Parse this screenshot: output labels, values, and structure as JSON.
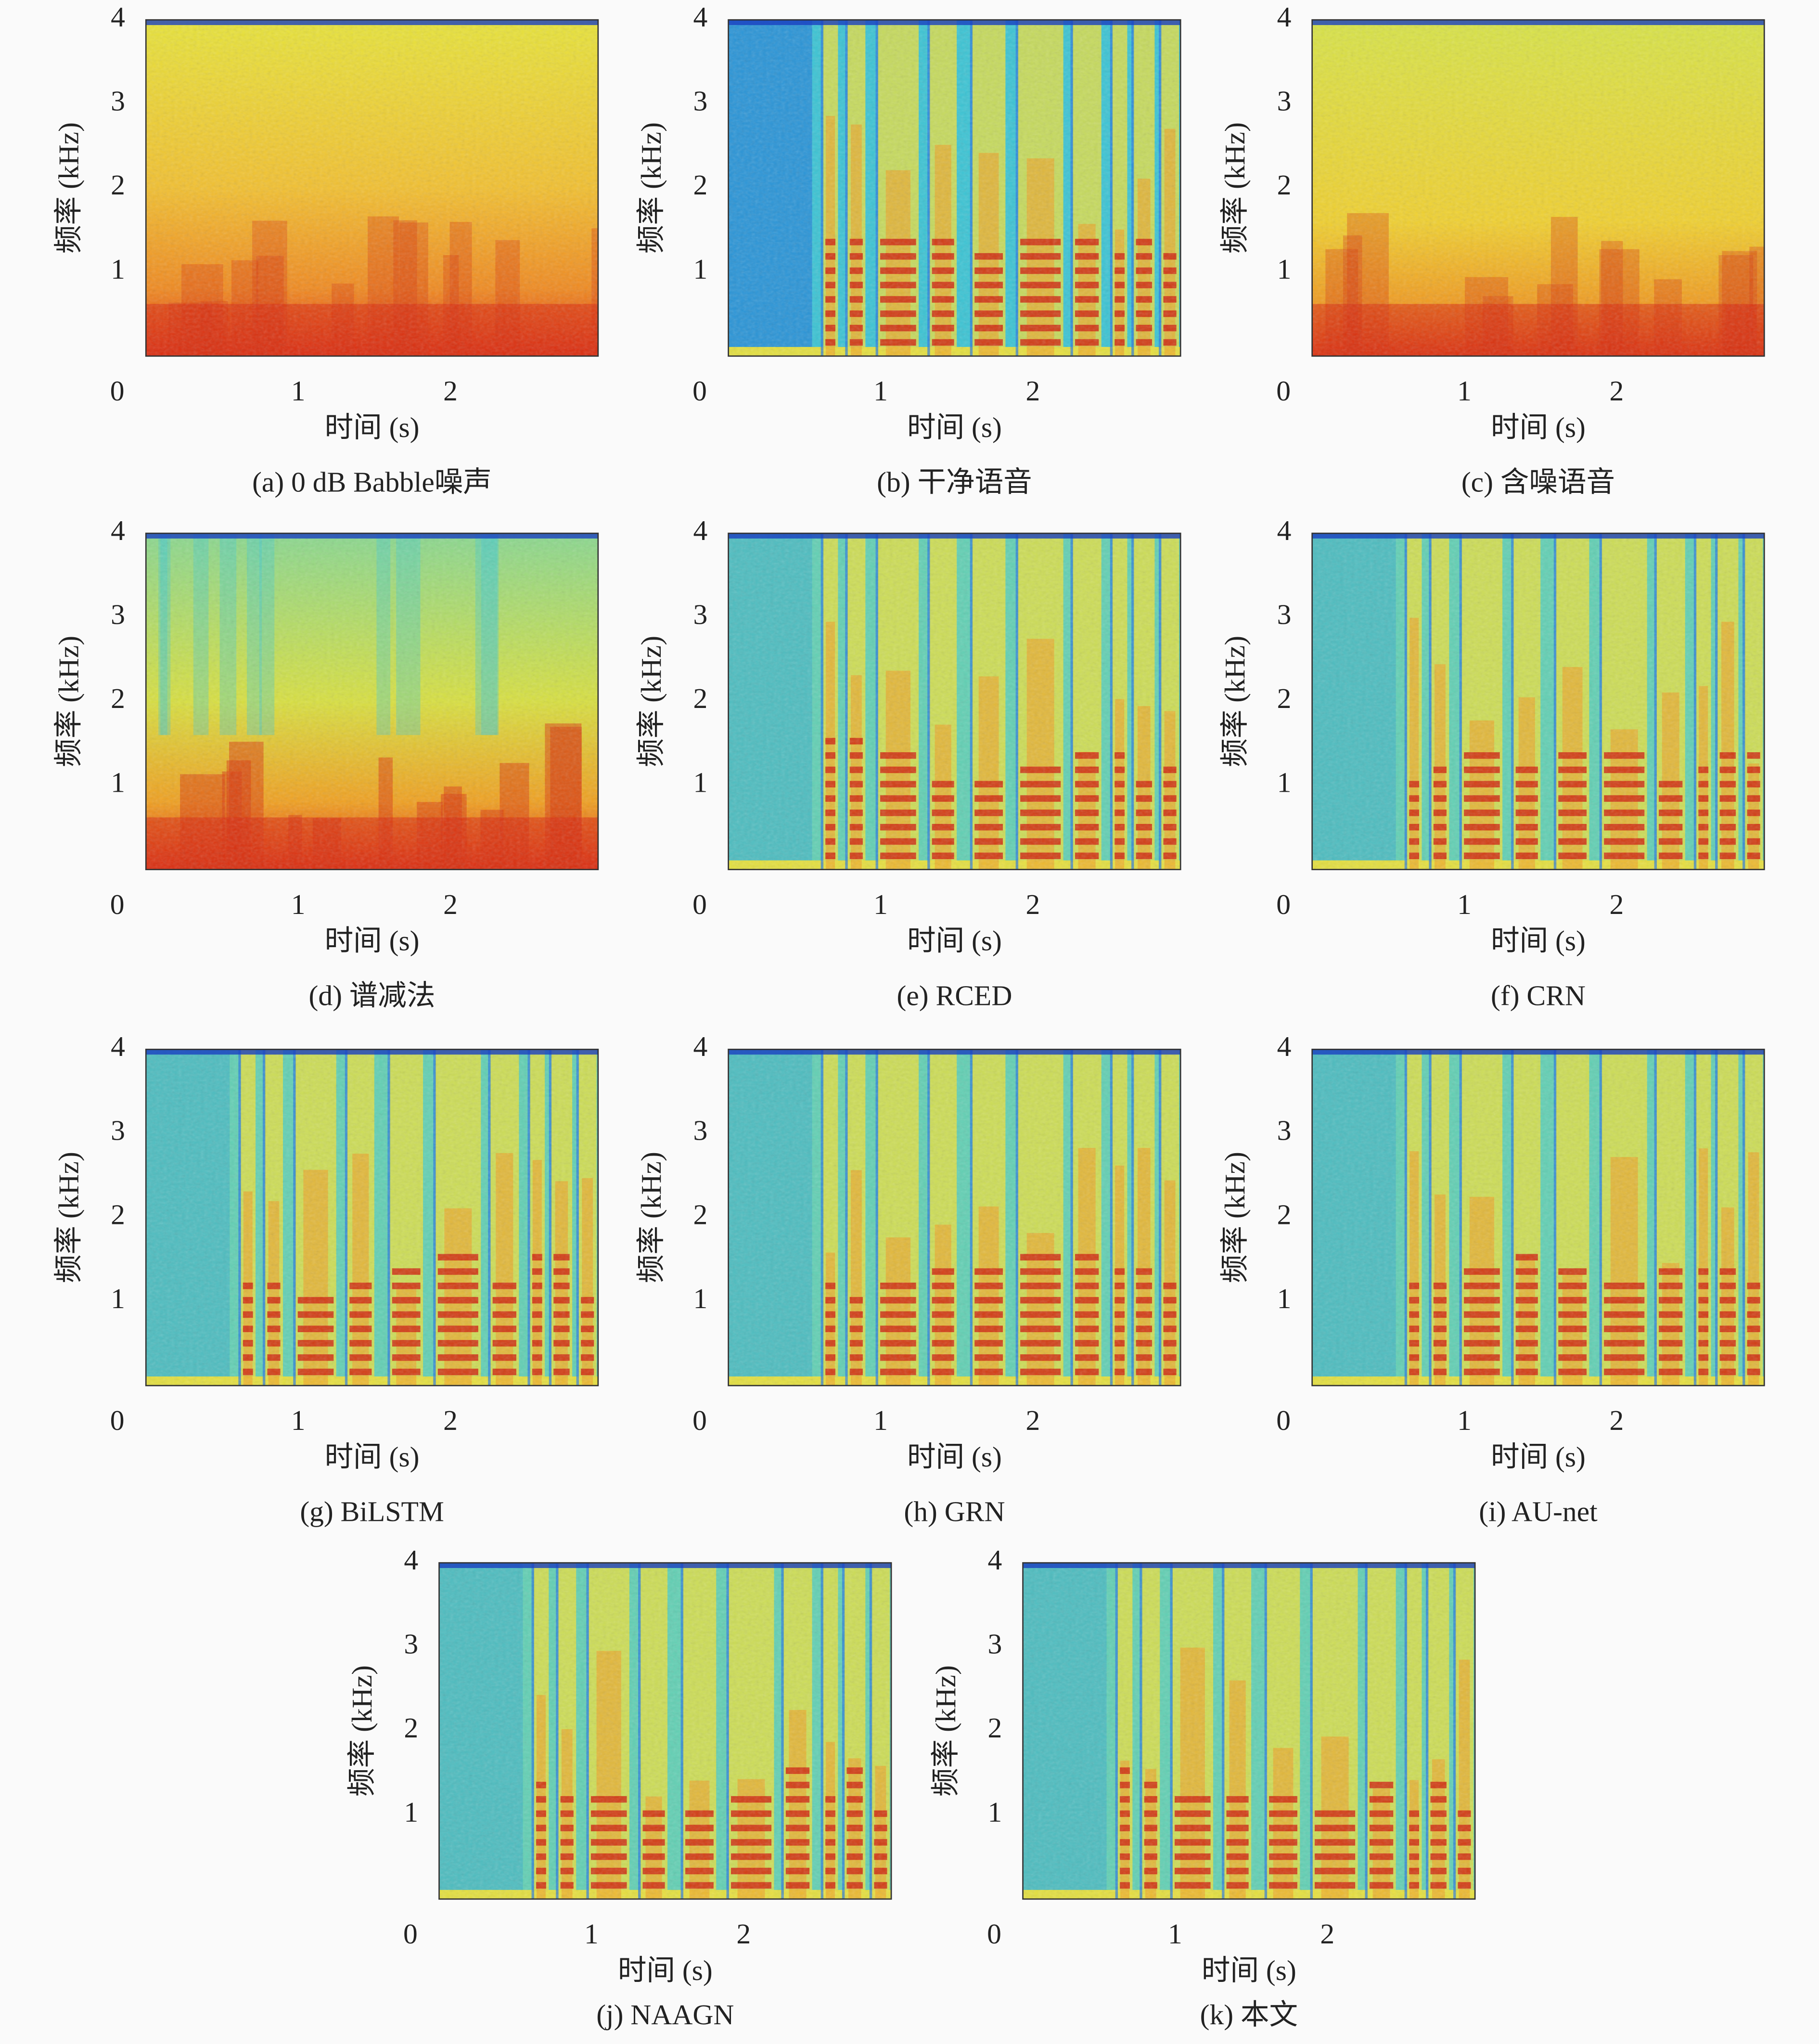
{
  "chart_data": [
    {
      "type": "spectrogram",
      "caption": "(a) 0 dB Babble噪声",
      "xlabel": "时间 (s)",
      "ylabel": "频率 (kHz)",
      "xlim": [
        0,
        2.97
      ],
      "ylim": [
        0,
        4
      ],
      "xticks": [
        0,
        1,
        2
      ],
      "yticks": [
        1,
        2,
        3,
        4
      ]
    },
    {
      "type": "spectrogram",
      "caption": "(b) 干净语音",
      "xlabel": "时间 (s)",
      "ylabel": "频率 (kHz)",
      "xlim": [
        0,
        2.97
      ],
      "ylim": [
        0,
        4
      ],
      "xticks": [
        0,
        1,
        2
      ],
      "yticks": [
        1,
        2,
        3,
        4
      ]
    },
    {
      "type": "spectrogram",
      "caption": "(c) 含噪语音",
      "xlabel": "时间 (s)",
      "ylabel": "频率 (kHz)",
      "xlim": [
        0,
        2.97
      ],
      "ylim": [
        0,
        4
      ],
      "xticks": [
        0,
        1,
        2
      ],
      "yticks": [
        1,
        2,
        3,
        4
      ]
    },
    {
      "type": "spectrogram",
      "caption": "(d) 谱减法",
      "xlabel": "时间 (s)",
      "ylabel": "频率 (kHz)",
      "xlim": [
        0,
        2.97
      ],
      "ylim": [
        0,
        4
      ],
      "xticks": [
        0,
        1,
        2
      ],
      "yticks": [
        1,
        2,
        3,
        4
      ]
    },
    {
      "type": "spectrogram",
      "caption": "(e) RCED",
      "xlabel": "时间 (s)",
      "ylabel": "频率 (kHz)",
      "xlim": [
        0,
        2.97
      ],
      "ylim": [
        0,
        4
      ],
      "xticks": [
        0,
        1,
        2
      ],
      "yticks": [
        1,
        2,
        3,
        4
      ]
    },
    {
      "type": "spectrogram",
      "caption": "(f) CRN",
      "xlabel": "时间 (s)",
      "ylabel": "频率 (kHz)",
      "xlim": [
        0,
        2.97
      ],
      "ylim": [
        0,
        4
      ],
      "xticks": [
        0,
        1,
        2
      ],
      "yticks": [
        1,
        2,
        3,
        4
      ]
    },
    {
      "type": "spectrogram",
      "caption": "(g) BiLSTM",
      "xlabel": "时间 (s)",
      "ylabel": "频率 (kHz)",
      "xlim": [
        0,
        2.97
      ],
      "ylim": [
        0,
        4
      ],
      "xticks": [
        0,
        1,
        2
      ],
      "yticks": [
        1,
        2,
        3,
        4
      ]
    },
    {
      "type": "spectrogram",
      "caption": "(h) GRN",
      "xlabel": "时间 (s)",
      "ylabel": "频率 (kHz)",
      "xlim": [
        0,
        2.97
      ],
      "ylim": [
        0,
        4
      ],
      "xticks": [
        0,
        1,
        2
      ],
      "yticks": [
        1,
        2,
        3,
        4
      ]
    },
    {
      "type": "spectrogram",
      "caption": "(i) AU-net",
      "xlabel": "时间 (s)",
      "ylabel": "频率 (kHz)",
      "xlim": [
        0,
        2.97
      ],
      "ylim": [
        0,
        4
      ],
      "xticks": [
        0,
        1,
        2
      ],
      "yticks": [
        1,
        2,
        3,
        4
      ]
    },
    {
      "type": "spectrogram",
      "caption": "(j) NAAGN",
      "xlabel": "时间 (s)",
      "ylabel": "频率 (kHz)",
      "xlim": [
        0,
        2.97
      ],
      "ylim": [
        0,
        4
      ],
      "xticks": [
        0,
        1,
        2
      ],
      "yticks": [
        1,
        2,
        3,
        4
      ]
    },
    {
      "type": "spectrogram",
      "caption": "(k) 本文",
      "xlabel": "时间 (s)",
      "ylabel": "频率 (kHz)",
      "xlim": [
        0,
        2.97
      ],
      "ylim": [
        0,
        4
      ],
      "xticks": [
        0,
        1,
        2
      ],
      "yticks": [
        1,
        2,
        3,
        4
      ]
    }
  ]
}
